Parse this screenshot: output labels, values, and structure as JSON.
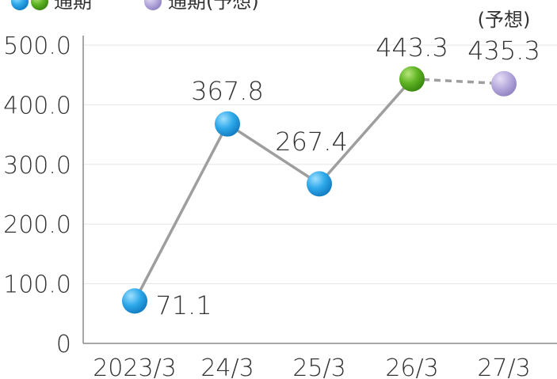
{
  "chart_data": {
    "type": "line",
    "categories": [
      "2023/3",
      "24/3",
      "25/3",
      "26/3",
      "27/3"
    ],
    "values": [
      71.1,
      367.8,
      267.4,
      443.3,
      435.3
    ],
    "value_labels": [
      "71.1",
      "367.8",
      "267.4",
      "443.3",
      "435.3"
    ],
    "forecast_note": "(予想)",
    "ylim": [
      0,
      500
    ],
    "y_ticks": [
      "0",
      "100.0",
      "200.0",
      "300.0",
      "400.0",
      "500.0"
    ],
    "grid": true,
    "legend": [
      {
        "name": "通期",
        "colors": [
          "#29a9e8",
          "#5fb31f"
        ]
      },
      {
        "name": "通期(予想)",
        "colors": [
          "#b7a9dc"
        ]
      }
    ],
    "colors": {
      "actual": "#29a9e8",
      "latest": "#5fb31f",
      "forecast": "#b7a9dc",
      "line": "#9e9e9e",
      "grid": "#e6e6e6"
    }
  }
}
